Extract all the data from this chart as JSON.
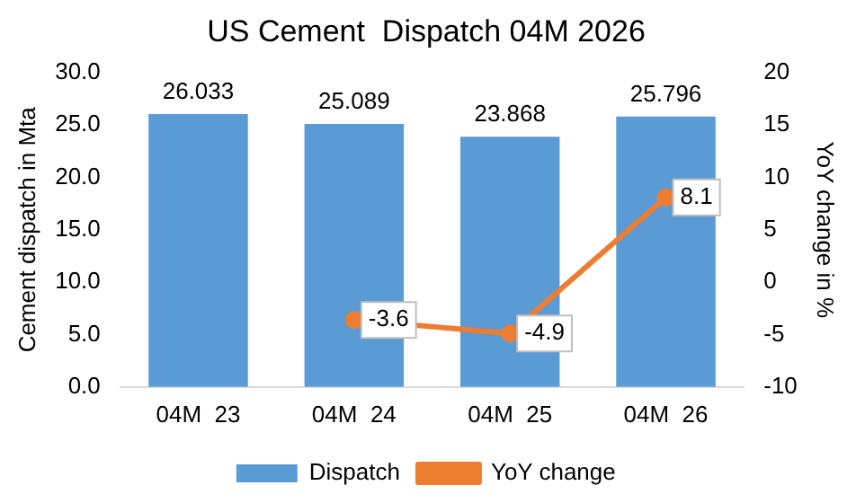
{
  "chart_data": {
    "type": "bar",
    "title": "US Cement  Dispatch 04M 2026",
    "ylabel": "Cement dispatch in Mta",
    "y2label": "YoY change in %",
    "categories": [
      "04M  23",
      "04M  24",
      "04M  25",
      "04M  26"
    ],
    "series": [
      {
        "name": "Dispatch",
        "color": "#5b9bd5",
        "values": [
          26.033,
          25.089,
          23.868,
          25.796
        ]
      },
      {
        "name": "YoY change",
        "type": "line",
        "axis": "y2",
        "color": "#ed7d31",
        "values": [
          null,
          -3.6,
          -4.9,
          8.1
        ],
        "value_labels": [
          null,
          "-3.6",
          "-4.9",
          "8.1"
        ]
      }
    ],
    "ylim": [
      0,
      30
    ],
    "yticks": [
      {
        "value": 0,
        "label": "0.0"
      },
      {
        "value": 5,
        "label": "5.0"
      },
      {
        "value": 10,
        "label": "10.0"
      },
      {
        "value": 15,
        "label": "15.0"
      },
      {
        "value": 20,
        "label": "20.0"
      },
      {
        "value": 25,
        "label": "25.0"
      },
      {
        "value": 30,
        "label": "30.0"
      }
    ],
    "y2lim": [
      -10,
      20
    ],
    "y2ticks": [
      -10,
      -5,
      0,
      5,
      10,
      15,
      20
    ],
    "data_labels": true,
    "legend": "bottom",
    "grid": false,
    "marker": "circle",
    "line_style": "solid"
  }
}
